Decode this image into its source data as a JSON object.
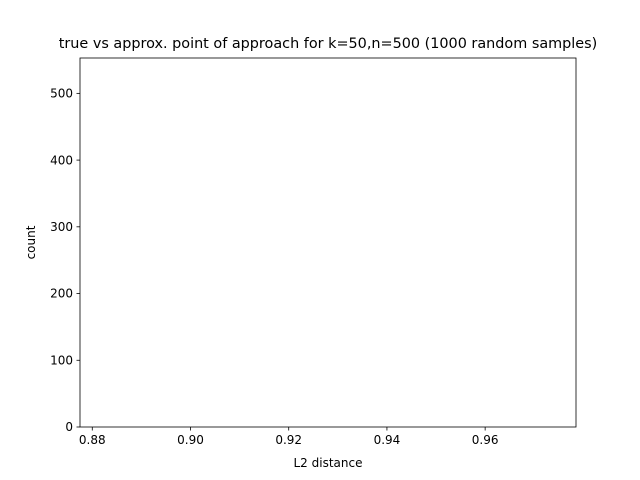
{
  "chart_data": {
    "type": "bar",
    "title": "true vs approx. point of approach for k=50,n=500 (1000 random samples)",
    "xlabel": "L2 distance",
    "ylabel": "count",
    "xlim": [
      0.8775,
      0.9785
    ],
    "ylim": [
      0,
      553
    ],
    "x_ticks": [
      0.88,
      0.9,
      0.92,
      0.94,
      0.96
    ],
    "x_tick_labels": [
      "0.88",
      "0.90",
      "0.92",
      "0.94",
      "0.96"
    ],
    "y_ticks": [
      0,
      100,
      200,
      300,
      400,
      500
    ],
    "y_tick_labels": [
      "0",
      "100",
      "200",
      "300",
      "400",
      "500"
    ],
    "bins": [],
    "counts": [],
    "grid": false,
    "legend": "none"
  }
}
